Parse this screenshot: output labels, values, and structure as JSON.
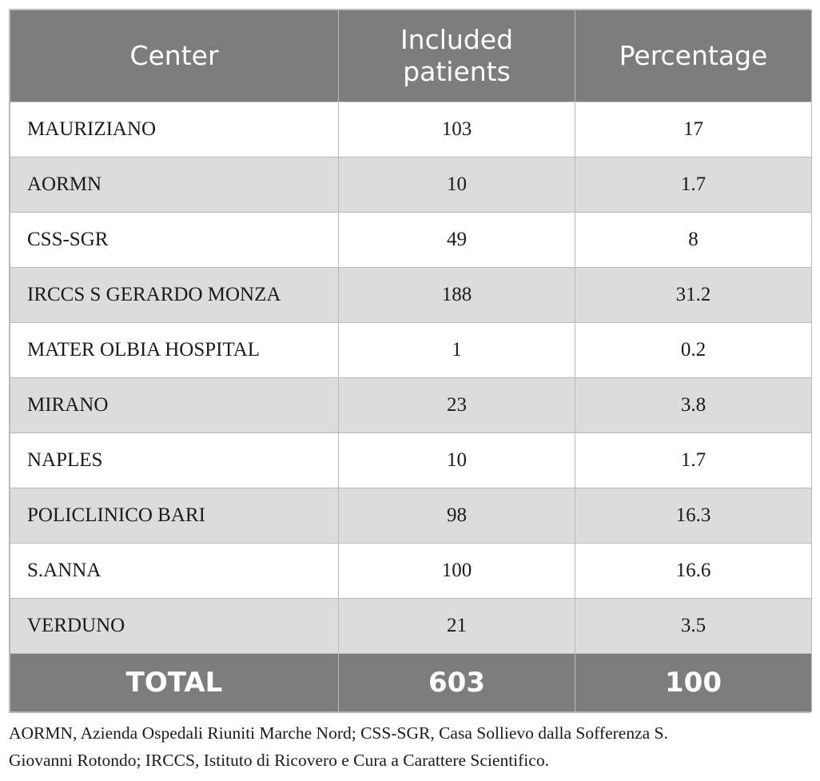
{
  "table": {
    "headers": {
      "center": "Center",
      "patients_line1": "Included",
      "patients_line2": "patients",
      "percentage": "Percentage"
    },
    "rows": [
      {
        "center": "MAURIZIANO",
        "patients": "103",
        "percentage": "17"
      },
      {
        "center": "AORMN",
        "patients": "10",
        "percentage": "1.7"
      },
      {
        "center": "CSS-SGR",
        "patients": "49",
        "percentage": "8"
      },
      {
        "center": "IRCCS S GERARDO MONZA",
        "patients": "188",
        "percentage": "31.2"
      },
      {
        "center": "MATER OLBIA HOSPITAL",
        "patients": "1",
        "percentage": "0.2"
      },
      {
        "center": "MIRANO",
        "patients": "23",
        "percentage": "3.8"
      },
      {
        "center": "NAPLES",
        "patients": "10",
        "percentage": "1.7"
      },
      {
        "center": "POLICLINICO BARI",
        "patients": "98",
        "percentage": "16.3"
      },
      {
        "center": "S.ANNA",
        "patients": "100",
        "percentage": "16.6"
      },
      {
        "center": "VERDUNO",
        "patients": "21",
        "percentage": "3.5"
      }
    ],
    "total": {
      "label": "TOTAL",
      "patients": "603",
      "percentage": "100"
    }
  },
  "footnote": {
    "line1": "AORMN, Azienda Ospedali Riuniti Marche Nord; CSS-SGR, Casa Sollievo dalla Sofferenza S.",
    "line2": "Giovanni Rotondo; IRCCS, Istituto di Ricovero e Cura a Carattere Scientifico."
  },
  "colors": {
    "header_bg": "#7d7d7d",
    "row_alt_bg": "#dcdcdc",
    "border": "#b9b9b9"
  }
}
